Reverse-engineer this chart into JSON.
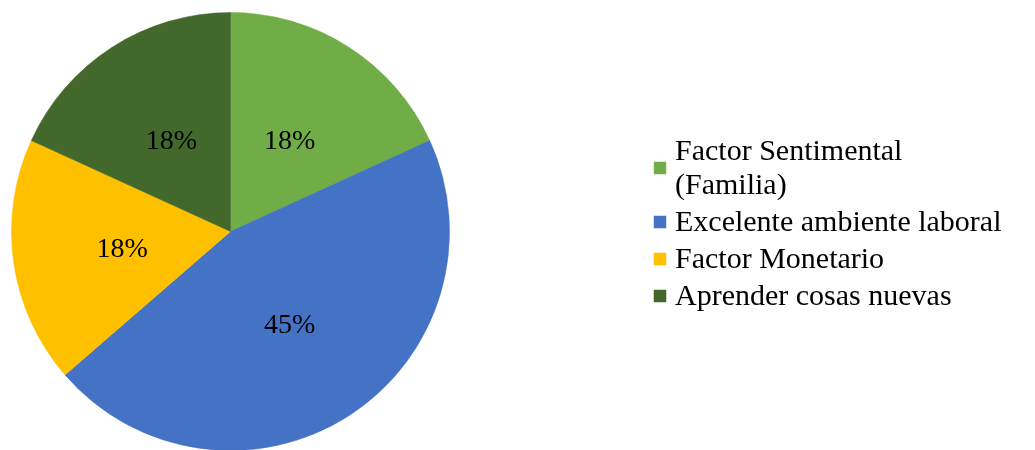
{
  "chart_data": {
    "type": "pie",
    "categories": [
      "Factor Sentimental (Familia)",
      "Excelente ambiente laboral",
      "Factor Monetario",
      "Aprender cosas nuevas"
    ],
    "values": [
      18,
      45,
      18,
      18
    ],
    "colors": [
      "#70ad47",
      "#4472c4",
      "#ffc000",
      "#43682b"
    ],
    "value_labels": [
      "18%",
      "45%",
      "18%",
      "18%"
    ],
    "legend": "right"
  }
}
